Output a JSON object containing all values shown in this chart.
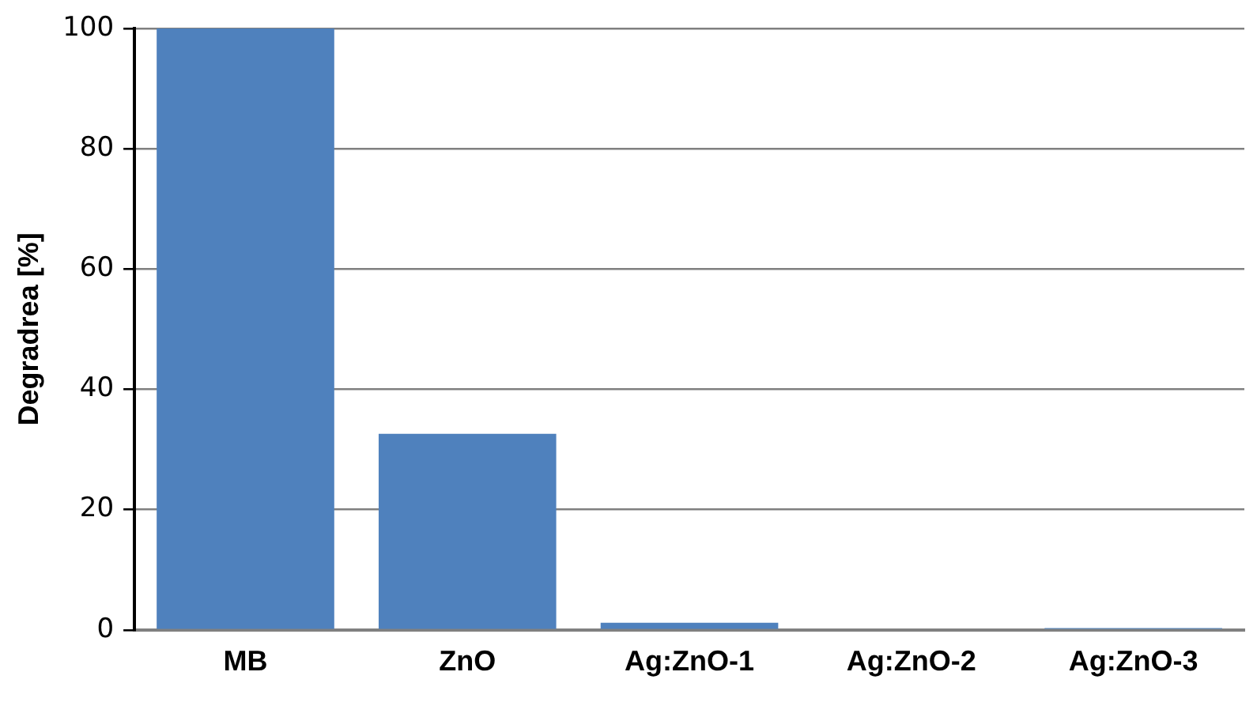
{
  "chart_data": {
    "type": "bar",
    "ylabel": "Degradrea [%]",
    "categories": [
      "MB",
      "ZnO",
      "Ag:ZnO-1",
      "Ag:ZnO-2",
      "Ag:ZnO-3"
    ],
    "values": [
      100,
      32.6,
      1.2,
      0,
      0.3
    ],
    "color": "#4f81bd",
    "ylim": [
      0,
      100
    ],
    "yticks": [
      0,
      20,
      40,
      60,
      80,
      100
    ],
    "grid": "y"
  }
}
